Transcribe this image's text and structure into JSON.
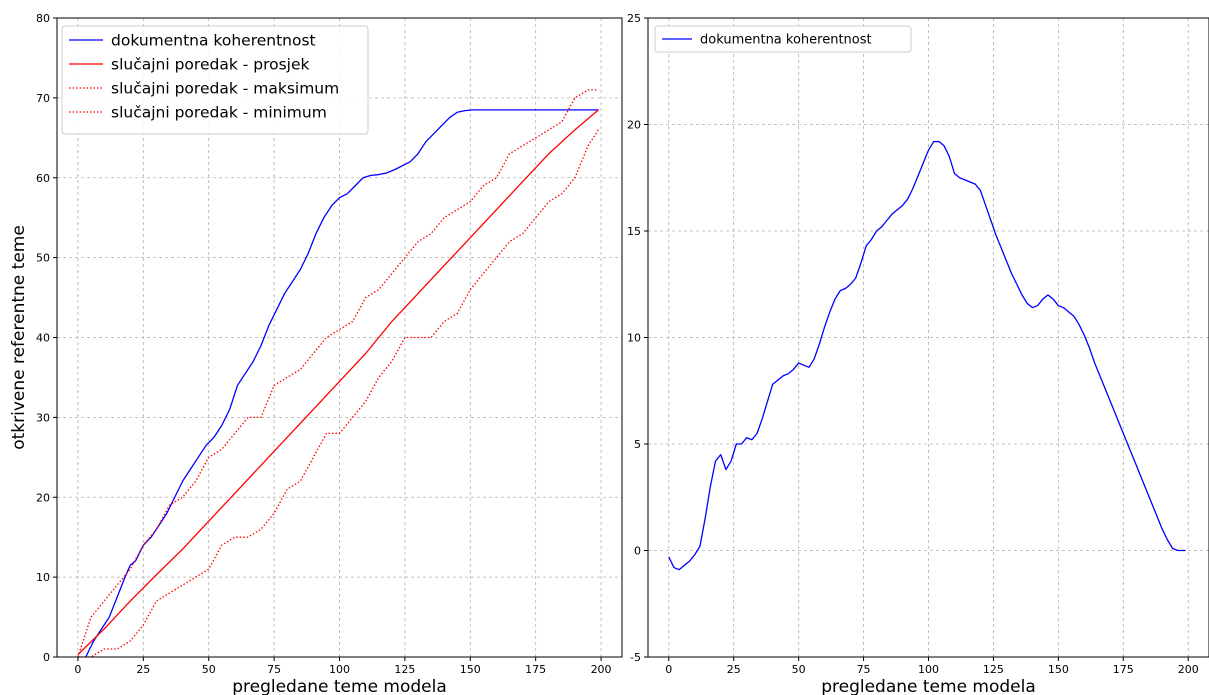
{
  "chart_data": [
    {
      "type": "line",
      "xlabel": "pregledane teme modela",
      "ylabel": "otkrivene referentne teme",
      "xlim": [
        -8,
        208
      ],
      "ylim": [
        0,
        80
      ],
      "xticks": [
        0,
        25,
        50,
        75,
        100,
        125,
        150,
        175,
        200
      ],
      "yticks": [
        0,
        10,
        20,
        30,
        40,
        50,
        60,
        70,
        80
      ],
      "grid": true,
      "legend_position": "top-left",
      "series": [
        {
          "name": "dokumentna koherentnost",
          "color": "#0000ff",
          "style": "solid",
          "x": [
            0,
            3,
            6,
            9,
            12,
            15,
            18,
            20,
            22,
            25,
            28,
            31,
            34,
            37,
            40,
            43,
            46,
            49,
            52,
            55,
            58,
            61,
            64,
            67,
            70,
            73,
            76,
            79,
            82,
            85,
            88,
            91,
            94,
            97,
            100,
            103,
            106,
            109,
            112,
            115,
            118,
            121,
            124,
            127,
            130,
            133,
            136,
            139,
            142,
            145,
            148,
            151,
            154,
            157,
            160,
            163,
            166,
            169,
            172,
            175,
            178,
            181,
            184,
            187,
            190,
            193,
            196,
            199
          ],
          "y": [
            -1,
            0,
            2,
            3.5,
            5,
            7.5,
            10,
            11.5,
            12,
            14,
            15,
            16.5,
            18,
            20,
            22,
            23.5,
            25,
            26.5,
            27.5,
            29,
            31,
            34,
            35.5,
            37,
            39,
            41.5,
            43.5,
            45.5,
            47,
            48.5,
            50.5,
            53,
            55,
            56.5,
            57.5,
            58,
            59,
            60,
            60.3,
            60.4,
            60.6,
            61,
            61.5,
            62,
            63,
            64.5,
            65.5,
            66.5,
            67.5,
            68.2,
            68.4,
            68.5,
            68.5,
            68.5,
            68.5,
            68.5,
            68.5,
            68.5,
            68.5,
            68.5,
            68.5,
            68.5,
            68.5,
            68.5,
            68.5,
            68.5,
            68.5,
            68.5
          ]
        },
        {
          "name": "slučajni poredak - prosjek",
          "color": "#ff0000",
          "style": "solid",
          "x": [
            0,
            10,
            20,
            30,
            40,
            50,
            60,
            70,
            80,
            90,
            100,
            110,
            120,
            130,
            140,
            150,
            160,
            170,
            180,
            190,
            199
          ],
          "y": [
            0.3,
            3.5,
            7,
            10.3,
            13.5,
            17,
            20.5,
            24,
            27.5,
            31,
            34.5,
            38,
            42,
            45.5,
            49,
            52.5,
            56,
            59.5,
            63,
            66,
            68.5
          ]
        },
        {
          "name": "slučajni poredak - maksimum",
          "color": "#ff0000",
          "style": "dotted",
          "x": [
            0,
            5,
            10,
            15,
            20,
            25,
            30,
            35,
            40,
            45,
            50,
            55,
            60,
            65,
            70,
            75,
            80,
            85,
            90,
            95,
            100,
            105,
            110,
            115,
            120,
            125,
            130,
            135,
            140,
            145,
            150,
            155,
            160,
            165,
            170,
            175,
            180,
            185,
            190,
            195,
            199
          ],
          "y": [
            0,
            5,
            7,
            9,
            11,
            14,
            16,
            19,
            20,
            22,
            25,
            26,
            28,
            30,
            30,
            34,
            35,
            36,
            38,
            40,
            41,
            42,
            45,
            46,
            48,
            50,
            52,
            53,
            55,
            56,
            57,
            59,
            60,
            63,
            64,
            65,
            66,
            67,
            70,
            71,
            71
          ]
        },
        {
          "name": "slučajni poredak - minimum",
          "color": "#ff0000",
          "style": "dotted",
          "x": [
            0,
            5,
            10,
            15,
            20,
            25,
            30,
            35,
            40,
            45,
            50,
            55,
            60,
            65,
            70,
            75,
            80,
            85,
            90,
            95,
            100,
            105,
            110,
            115,
            120,
            125,
            130,
            135,
            140,
            145,
            150,
            155,
            160,
            165,
            170,
            175,
            180,
            185,
            190,
            195,
            199
          ],
          "y": [
            0,
            0,
            1,
            1,
            2,
            4,
            7,
            8,
            9,
            10,
            11,
            14,
            15,
            15,
            16,
            18,
            21,
            22,
            25,
            28,
            28,
            30,
            32,
            35,
            37,
            40,
            40,
            40,
            42,
            43,
            46,
            48,
            50,
            52,
            53,
            55,
            57,
            58,
            60,
            64,
            66
          ]
        }
      ]
    },
    {
      "type": "line",
      "xlabel": "pregledane teme modela",
      "ylabel": "",
      "xlim": [
        -8,
        208
      ],
      "ylim": [
        -5,
        25
      ],
      "xticks": [
        0,
        25,
        50,
        75,
        100,
        125,
        150,
        175,
        200
      ],
      "yticks": [
        -5,
        0,
        5,
        10,
        15,
        20,
        25
      ],
      "grid": true,
      "legend_position": "top-left",
      "series": [
        {
          "name": "dokumentna koherentnost",
          "color": "#0000ff",
          "style": "solid",
          "x": [
            0,
            2,
            4,
            6,
            8,
            10,
            12,
            14,
            16,
            18,
            20,
            22,
            24,
            26,
            28,
            30,
            32,
            34,
            36,
            38,
            40,
            42,
            44,
            46,
            48,
            50,
            52,
            54,
            56,
            58,
            60,
            62,
            64,
            66,
            68,
            70,
            72,
            74,
            76,
            78,
            80,
            82,
            84,
            86,
            88,
            90,
            92,
            94,
            96,
            98,
            100,
            102,
            104,
            106,
            108,
            110,
            112,
            114,
            116,
            118,
            120,
            122,
            124,
            126,
            128,
            130,
            132,
            134,
            136,
            138,
            140,
            142,
            144,
            146,
            148,
            150,
            152,
            154,
            156,
            158,
            160,
            162,
            164,
            166,
            168,
            170,
            172,
            174,
            176,
            178,
            180,
            182,
            184,
            186,
            188,
            190,
            192,
            194,
            196,
            198,
            199
          ],
          "y": [
            -0.3,
            -0.8,
            -0.9,
            -0.7,
            -0.5,
            -0.2,
            0.2,
            1.5,
            3,
            4.2,
            4.5,
            3.8,
            4.2,
            5,
            5,
            5.3,
            5.2,
            5.5,
            6.2,
            7,
            7.8,
            8,
            8.2,
            8.3,
            8.5,
            8.8,
            8.7,
            8.6,
            9,
            9.7,
            10.5,
            11.2,
            11.8,
            12.2,
            12.3,
            12.5,
            12.8,
            13.5,
            14.3,
            14.6,
            15,
            15.2,
            15.5,
            15.8,
            16,
            16.2,
            16.5,
            17,
            17.6,
            18.2,
            18.8,
            19.2,
            19.2,
            19,
            18.5,
            17.7,
            17.5,
            17.4,
            17.3,
            17.2,
            16.9,
            16.2,
            15.5,
            14.8,
            14.2,
            13.6,
            13,
            12.5,
            12,
            11.6,
            11.4,
            11.5,
            11.8,
            12,
            11.8,
            11.5,
            11.4,
            11.2,
            11,
            10.6,
            10.1,
            9.5,
            8.8,
            8.2,
            7.6,
            7,
            6.4,
            5.8,
            5.2,
            4.6,
            4,
            3.4,
            2.8,
            2.2,
            1.6,
            1,
            0.5,
            0.1,
            0,
            0,
            0
          ]
        }
      ]
    }
  ]
}
